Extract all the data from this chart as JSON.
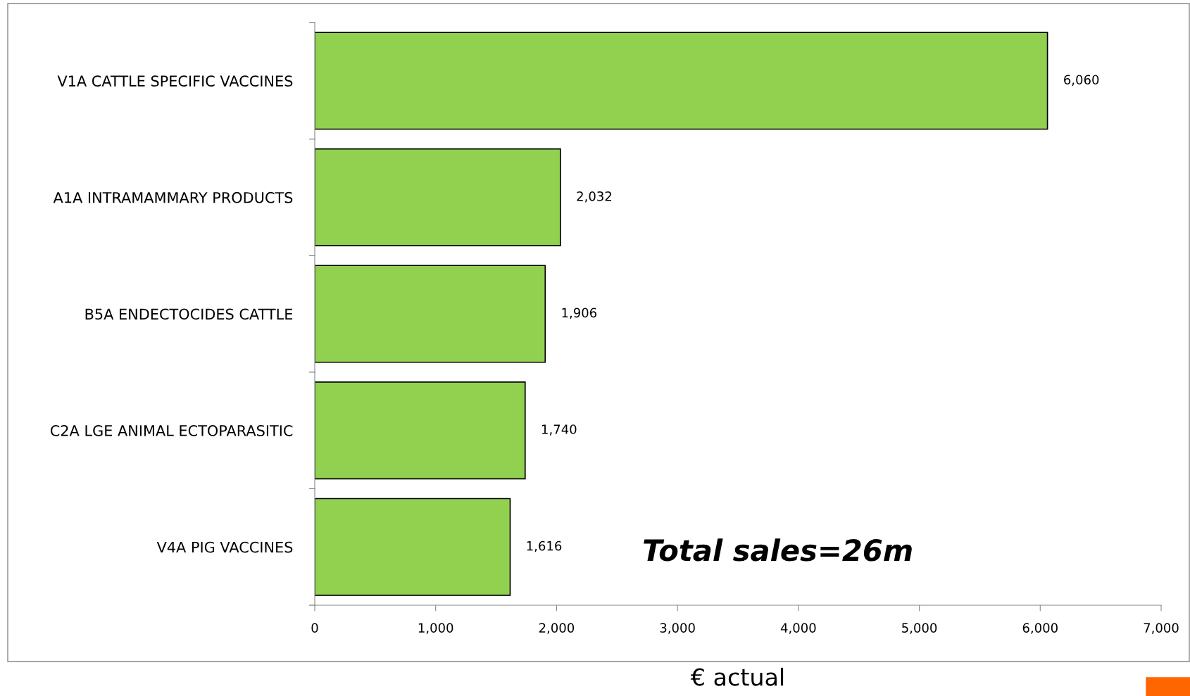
{
  "chart_data": {
    "type": "bar",
    "orientation": "horizontal",
    "xlabel": "€ actual",
    "categories": [
      "V1A CATTLE SPECIFIC VACCINES",
      "A1A INTRAMAMMARY PRODUCTS",
      "B5A ENDECTOCIDES CATTLE",
      "C2A LGE ANIMAL ECTOPARASITIC",
      "V4A PIG VACCINES"
    ],
    "values": [
      6060,
      2032,
      1906,
      1740,
      1616
    ],
    "color": "#92d050",
    "value_labels": [
      "6,060",
      "2,032",
      "1,906",
      "1,740",
      "1,616"
    ],
    "xlim": [
      0,
      7000
    ],
    "xticks": [
      0,
      {
        "value": 1000,
        "label": "1,000"
      },
      {
        "value": 2000,
        "label": "2,000"
      },
      {
        "value": 3000,
        "label": "3,000"
      },
      {
        "value": 4000,
        "label": "4,000"
      },
      {
        "value": 5000,
        "label": "5,000"
      },
      {
        "value": 6000,
        "label": "6,000"
      },
      {
        "value": 7000,
        "label": "7,000"
      }
    ],
    "grid": false,
    "legend": false,
    "annotations": [
      "Total sales=26m"
    ]
  }
}
